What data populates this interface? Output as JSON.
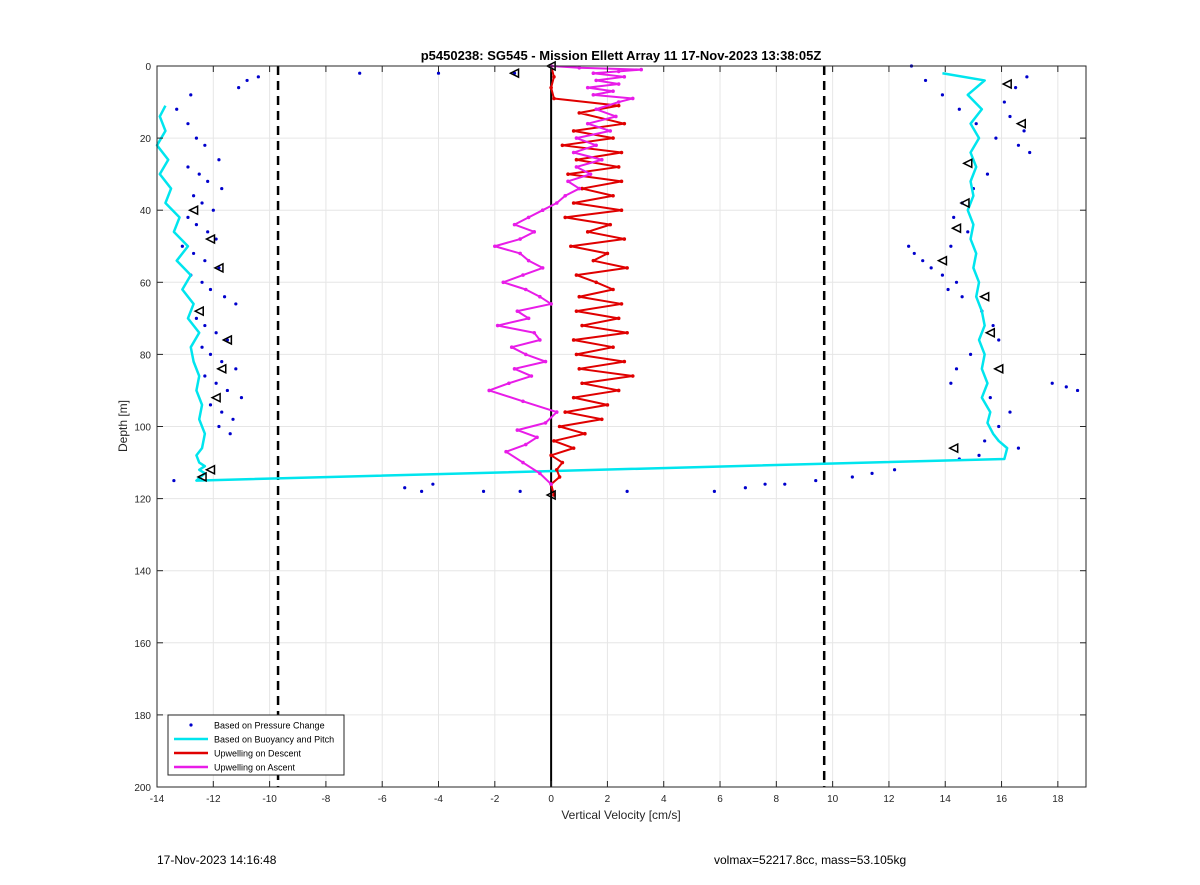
{
  "chart_data": {
    "type": "scatter",
    "title": "p5450238: SG545 - Mission Ellett Array 11 17-Nov-2023 13:38:05Z",
    "xlabel": "Vertical Velocity [cm/s]",
    "ylabel": "Depth [m]",
    "xlim": [
      -14,
      19
    ],
    "ylim": [
      0,
      200
    ],
    "y_reversed": true,
    "grid": true,
    "x_ticks": [
      -14,
      -12,
      -10,
      -8,
      -6,
      -4,
      -2,
      0,
      2,
      4,
      6,
      8,
      10,
      12,
      14,
      16,
      18
    ],
    "y_ticks": [
      0,
      20,
      40,
      60,
      80,
      100,
      120,
      140,
      160,
      180,
      200
    ],
    "legend_position": "bottom-left",
    "legend": [
      "Based on Pressure Change",
      "Based on Buoyancy and Pitch",
      "Upwelling on Descent",
      "Upwelling on Ascent"
    ],
    "reference_lines": {
      "zero_line_x": 0,
      "dashed_lines_x": [
        -9.7,
        9.7
      ]
    },
    "series": [
      {
        "name": "Based on Pressure Change",
        "style": "points",
        "color": "#0000cc",
        "x": [
          -10.4,
          -10.8,
          -11.1,
          -12.8,
          -13.3,
          -12.9,
          -12.6,
          -12.3,
          -11.8,
          -12.9,
          -12.5,
          -12.2,
          -11.7,
          -12.7,
          -12.4,
          -12.0,
          -12.9,
          -12.6,
          -12.2,
          -11.9,
          -13.1,
          -12.7,
          -12.3,
          -11.8,
          -12.8,
          -12.4,
          -12.1,
          -11.6,
          -11.2,
          -12.6,
          -12.3,
          -11.9,
          -11.5,
          -12.4,
          -12.1,
          -11.7,
          -11.2,
          -12.3,
          -11.9,
          -11.5,
          -11.0,
          -12.1,
          -11.7,
          -11.3,
          -11.8,
          -11.4,
          -13.4,
          -6.8,
          -4.0,
          -1.3,
          -5.2,
          -4.6,
          -4.2,
          -2.4,
          -1.1,
          2.7,
          5.8,
          6.9,
          7.6,
          8.3,
          9.4,
          10.7,
          11.4,
          12.2,
          12.8,
          13.3,
          13.9,
          14.5,
          15.1,
          15.8,
          16.6,
          17.0,
          16.8,
          16.3,
          16.1,
          16.5,
          16.9,
          15.5,
          15.0,
          14.6,
          14.3,
          14.8,
          14.2,
          12.7,
          12.9,
          13.2,
          13.5,
          13.9,
          14.4,
          14.1,
          14.6,
          15.3,
          15.7,
          15.9,
          14.9,
          14.4,
          14.2,
          15.6,
          16.3,
          17.8,
          18.3,
          18.7,
          15.9,
          15.4,
          15.2,
          16.6,
          14.5
        ],
        "y": [
          3,
          4,
          6,
          8,
          12,
          16,
          20,
          22,
          26,
          28,
          30,
          32,
          34,
          36,
          38,
          40,
          42,
          44,
          46,
          48,
          50,
          52,
          54,
          56,
          58,
          60,
          62,
          64,
          66,
          70,
          72,
          74,
          76,
          78,
          80,
          82,
          84,
          86,
          88,
          90,
          92,
          94,
          96,
          98,
          100,
          102,
          115,
          2,
          2,
          2,
          117,
          118,
          116,
          118,
          118,
          118,
          118,
          117,
          116,
          116,
          115,
          114,
          113,
          112,
          0,
          4,
          8,
          12,
          16,
          20,
          22,
          24,
          18,
          14,
          10,
          6,
          3,
          30,
          34,
          38,
          42,
          46,
          50,
          50,
          52,
          54,
          56,
          58,
          60,
          62,
          64,
          68,
          72,
          76,
          80,
          84,
          88,
          92,
          96,
          88,
          89,
          90,
          100,
          104,
          108,
          106,
          109
        ]
      },
      {
        "name": "Based on Buoyancy and Pitch",
        "style": "line",
        "color": "#00e5ee",
        "x": [
          -13.7,
          -13.9,
          -13.7,
          -14.0,
          -13.6,
          -13.9,
          -13.5,
          -13.7,
          -13.2,
          -13.4,
          -12.9,
          -13.3,
          -12.8,
          -13.1,
          -12.7,
          -12.9,
          -12.5,
          -12.8,
          -12.7,
          -12.5,
          -12.6,
          -12.4,
          -12.5,
          -12.3,
          -12.4,
          -12.6,
          -12.5,
          -12.3,
          -12.5,
          -12.3,
          -12.6,
          16.1,
          16.2,
          15.9,
          15.7,
          15.5,
          15.6,
          15.3,
          15.5,
          15.3,
          15.4,
          15.2,
          15.4,
          15.3,
          15.1,
          15.2,
          15.0,
          15.1,
          14.9,
          15.0,
          14.8,
          15.0,
          14.9,
          15.1,
          14.9,
          15.2,
          14.9,
          15.3,
          14.8,
          15.4,
          13.9
        ],
        "y": [
          11,
          14,
          18,
          22,
          26,
          30,
          34,
          38,
          42,
          46,
          50,
          54,
          58,
          62,
          66,
          70,
          74,
          78,
          82,
          86,
          90,
          94,
          98,
          102,
          106,
          108,
          110,
          111,
          112,
          113,
          115,
          109,
          106,
          104,
          102,
          99,
          96,
          92,
          88,
          84,
          80,
          76,
          72,
          68,
          64,
          60,
          56,
          52,
          48,
          44,
          40,
          36,
          32,
          28,
          24,
          20,
          16,
          12,
          8,
          4,
          2
        ]
      },
      {
        "name": "Upwelling on Descent",
        "style": "line-dots",
        "color": "#e00000",
        "x": [
          0.0,
          0.1,
          0.0,
          0.1,
          2.4,
          1.0,
          2.6,
          0.8,
          2.2,
          0.4,
          2.5,
          0.9,
          2.4,
          0.6,
          2.5,
          1.1,
          2.2,
          0.8,
          2.5,
          0.5,
          2.1,
          1.3,
          2.6,
          0.7,
          2.0,
          1.5,
          2.7,
          0.9,
          1.6,
          2.2,
          1.0,
          2.5,
          0.9,
          2.4,
          1.1,
          2.7,
          0.8,
          2.2,
          0.9,
          2.6,
          1.0,
          2.9,
          1.1,
          2.4,
          0.8,
          2.0,
          0.5,
          1.8,
          0.3,
          1.2,
          0.1,
          0.8,
          0.0,
          0.4,
          0.2,
          0.3,
          0.0,
          0.1
        ],
        "y": [
          0,
          3,
          6,
          9,
          11,
          13,
          16,
          18,
          20,
          22,
          24,
          26,
          28,
          30,
          32,
          34,
          36,
          38,
          40,
          42,
          44,
          46,
          48,
          50,
          52,
          54,
          56,
          58,
          60,
          62,
          64,
          66,
          68,
          70,
          72,
          74,
          76,
          78,
          80,
          82,
          84,
          86,
          88,
          90,
          92,
          94,
          96,
          98,
          100,
          102,
          104,
          106,
          108,
          110,
          112,
          114,
          116,
          119
        ]
      },
      {
        "name": "Upwelling on Ascent",
        "style": "line-dots",
        "color": "#e81ce8",
        "x": [
          0.0,
          -0.4,
          -1.0,
          -1.6,
          -0.9,
          -0.5,
          -1.2,
          -0.2,
          0.2,
          -1.0,
          -2.2,
          -1.5,
          -0.7,
          -1.3,
          -0.2,
          -0.9,
          -1.4,
          -0.4,
          -0.6,
          -1.9,
          -0.8,
          -1.2,
          0.0,
          -0.4,
          -0.9,
          -1.7,
          -1.0,
          -0.3,
          -0.8,
          -1.1,
          -2.0,
          -1.1,
          -0.6,
          -1.3,
          -0.8,
          -0.3,
          0.2,
          0.5,
          1.0,
          0.6,
          1.4,
          0.9,
          1.8,
          0.8,
          1.6,
          0.9,
          2.1,
          1.3,
          2.3,
          1.6,
          2.4,
          2.9,
          1.5,
          2.2,
          1.3,
          2.4,
          1.6,
          2.6,
          1.5,
          2.4,
          3.2,
          1.0,
          0.0
        ],
        "y": [
          116,
          113,
          110,
          107,
          105,
          103,
          101,
          99,
          96,
          93,
          90,
          88,
          86,
          84,
          82,
          80,
          78,
          76,
          74,
          72,
          70,
          68,
          66,
          64,
          62,
          60,
          58,
          56,
          54,
          52,
          50,
          48,
          46,
          44,
          42,
          40,
          38,
          36,
          34,
          32,
          30,
          28,
          26,
          24,
          22,
          20,
          18,
          16,
          14,
          12,
          10,
          9,
          8,
          7,
          6,
          5,
          4,
          3,
          2,
          1.5,
          1,
          0.5,
          0
        ]
      },
      {
        "name": "",
        "style": "triangle-markers",
        "color": "#000000",
        "x": [
          -1.3,
          -12.7,
          -12.1,
          -11.8,
          -12.5,
          -11.5,
          -11.7,
          -11.9,
          -12.1,
          -12.4,
          16.2,
          16.7,
          14.8,
          14.7,
          14.4,
          13.9,
          15.4,
          15.6,
          15.9,
          14.3,
          0.0,
          0.0
        ],
        "y": [
          2,
          40,
          48,
          56,
          68,
          76,
          84,
          92,
          112,
          114,
          5,
          16,
          27,
          38,
          45,
          54,
          64,
          74,
          84,
          106,
          0,
          119
        ]
      }
    ]
  },
  "footer": {
    "left": "17-Nov-2023 14:16:48",
    "right": "volmax=52217.8cc, mass=53.105kg"
  }
}
